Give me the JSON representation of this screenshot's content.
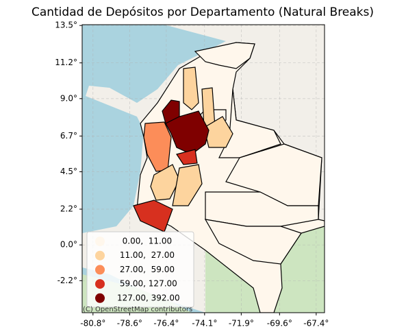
{
  "chart_data": {
    "type": "choropleth",
    "title": "Cantidad de Depósitos por Departamento (Natural Breaks)",
    "xlim": [
      -81.45,
      -66.9
    ],
    "ylim": [
      -4.17,
      13.55
    ],
    "xticks": [
      {
        "value": -80.8,
        "label": "-80.8°"
      },
      {
        "value": -78.6,
        "label": "-78.6°"
      },
      {
        "value": -76.4,
        "label": "-76.4°"
      },
      {
        "value": -74.1,
        "label": "-74.1°"
      },
      {
        "value": -71.9,
        "label": "-71.9°"
      },
      {
        "value": -69.6,
        "label": "-69.6°"
      },
      {
        "value": -67.4,
        "label": "-67.4°"
      }
    ],
    "yticks": [
      {
        "value": 13.5,
        "label": "13.5°"
      },
      {
        "value": 11.2,
        "label": "11.2°"
      },
      {
        "value": 9.0,
        "label": "9.0°"
      },
      {
        "value": 6.7,
        "label": "6.7°"
      },
      {
        "value": 4.5,
        "label": "4.5°"
      },
      {
        "value": 2.2,
        "label": "2.2°"
      },
      {
        "value": 0.0,
        "label": "0.0°"
      },
      {
        "value": -2.2,
        "label": "-2.2°"
      }
    ],
    "grid": true,
    "legend": {
      "position": "lower left",
      "classes": [
        {
          "label": "  0.00,  11.00",
          "color": "#fff7ec"
        },
        {
          "label": " 11.00,  27.00",
          "color": "#fdd49e"
        },
        {
          "label": " 27.00,  59.00",
          "color": "#fc8d59"
        },
        {
          "label": " 59.00, 127.00",
          "color": "#d7301f"
        },
        {
          "label": "127.00, 392.00",
          "color": "#7f0000"
        }
      ]
    },
    "attribution": "(C) OpenStreetMap contributors"
  }
}
